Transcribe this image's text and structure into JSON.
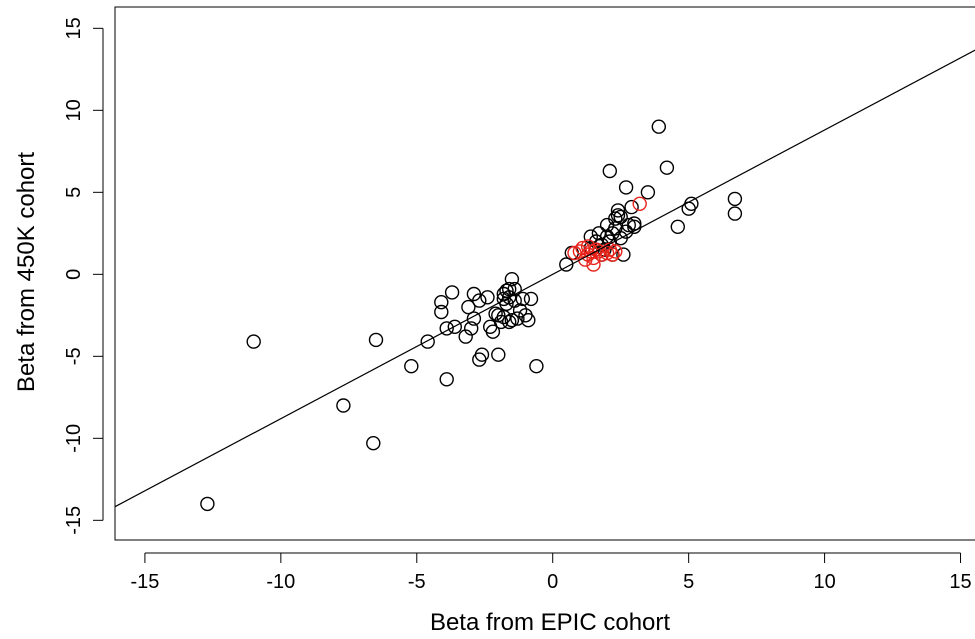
{
  "chart_data": {
    "type": "scatter",
    "title": "",
    "xlabel": "Beta from EPIC cohort",
    "ylabel": "Beta from 450K cohort",
    "xlim": [
      -16.1,
      15.9
    ],
    "ylim": [
      -16.2,
      16.3
    ],
    "xticks": [
      -15,
      -10,
      -5,
      0,
      5,
      10,
      15
    ],
    "xtick_labels": [
      "-15",
      "-10",
      "-5",
      "0",
      "5",
      "10",
      "15"
    ],
    "yticks": [
      -15,
      -10,
      -5,
      0,
      5,
      10,
      15
    ],
    "ytick_labels": [
      "-15",
      "-10",
      "-5",
      "0",
      "5",
      "10",
      "15"
    ],
    "grid": false,
    "colors": {
      "black_points": "#000000",
      "red_points": "#e8231b",
      "line": "#000000"
    },
    "fit_line": {
      "intercept": 0.0,
      "slope": 0.88
    },
    "series": [
      {
        "color": "#000000",
        "x": [
          -12.7,
          -11.0,
          -7.7,
          -6.6,
          -6.5,
          -5.2,
          -4.6,
          -4.1,
          -4.1,
          -3.9,
          -3.9,
          -3.7,
          -3.6,
          -3.2,
          -3.1,
          -3.0,
          -2.9,
          -2.9,
          -2.7,
          -2.7,
          -2.6,
          -2.4,
          -2.3,
          -2.2,
          -2.1,
          -2.0,
          -2.0,
          -1.9,
          -1.8,
          -1.8,
          -1.8,
          -1.7,
          -1.7,
          -1.6,
          -1.6,
          -1.6,
          -1.5,
          -1.5,
          -1.4,
          -1.4,
          -1.3,
          -1.2,
          -1.1,
          -1.0,
          -0.9,
          -0.8,
          -0.6,
          0.5,
          0.7,
          1.4,
          1.4,
          1.6,
          1.6,
          1.7,
          1.8,
          1.8,
          1.9,
          2.0,
          2.0,
          2.1,
          2.1,
          2.2,
          2.2,
          2.3,
          2.3,
          2.4,
          2.4,
          2.5,
          2.5,
          2.6,
          2.7,
          2.7,
          2.8,
          2.9,
          3.0,
          3.0,
          3.5,
          3.9,
          4.2,
          4.6,
          5.0,
          5.1,
          6.7,
          6.7
        ],
        "y": [
          -14.0,
          -4.1,
          -8.0,
          -10.3,
          -4.0,
          -5.6,
          -4.1,
          -1.7,
          -2.3,
          -3.3,
          -6.4,
          -1.1,
          -3.2,
          -3.8,
          -2.0,
          -3.3,
          -1.2,
          -2.7,
          -5.2,
          -1.6,
          -4.9,
          -1.4,
          -3.2,
          -3.5,
          -2.4,
          -4.9,
          -2.5,
          -2.9,
          -1.5,
          -1.2,
          -2.6,
          -1.8,
          -1.0,
          -1.4,
          -2.9,
          -0.9,
          -0.3,
          -2.8,
          -1.6,
          -0.9,
          -2.7,
          -2.2,
          -1.5,
          -2.5,
          -2.8,
          -1.5,
          -5.6,
          0.6,
          1.3,
          2.3,
          1.6,
          2.0,
          1.5,
          2.5,
          1.8,
          1.2,
          1.5,
          2.3,
          3.0,
          6.3,
          2.0,
          2.5,
          1.2,
          3.4,
          2.8,
          3.6,
          3.9,
          2.2,
          3.5,
          1.2,
          2.6,
          5.3,
          3.0,
          4.1,
          2.9,
          3.1,
          5.0,
          9.0,
          6.5,
          2.9,
          4.0,
          4.3,
          4.6,
          3.7
        ]
      },
      {
        "color": "#e8231b",
        "x": [
          0.8,
          1.0,
          1.1,
          1.2,
          1.3,
          1.3,
          1.4,
          1.5,
          1.5,
          1.6,
          1.7,
          1.8,
          2.0,
          2.1,
          2.2,
          2.3,
          3.2
        ],
        "y": [
          1.3,
          1.4,
          1.6,
          0.9,
          1.7,
          1.2,
          1.4,
          0.6,
          1.0,
          1.5,
          1.4,
          1.2,
          1.3,
          1.5,
          1.2,
          1.4,
          4.3
        ]
      }
    ]
  }
}
